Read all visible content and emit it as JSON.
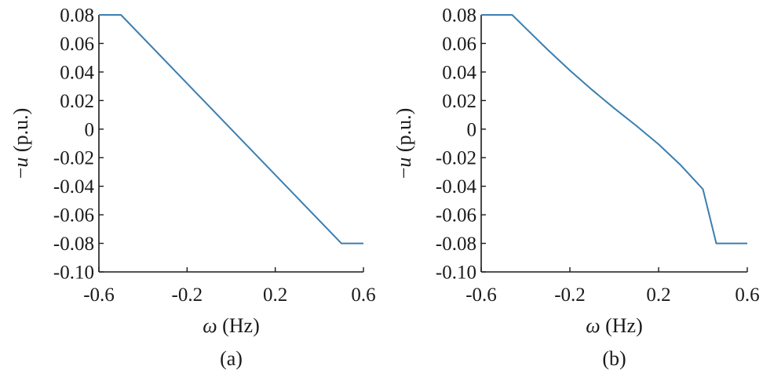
{
  "chart_data": [
    {
      "type": "line",
      "panel_label": "(a)",
      "xlabel_symbol": "ω",
      "xlabel_unit": " (Hz)",
      "ylabel_prefix": "−",
      "ylabel_symbol": "u",
      "ylabel_unit": " (p.u.)",
      "xlim": [
        -0.6,
        0.6
      ],
      "ylim": [
        -0.1,
        0.08
      ],
      "xticks": [
        -0.6,
        -0.2,
        0.2,
        0.6
      ],
      "xtick_labels": [
        "-0.6",
        "-0.2",
        "0.2",
        "0.6"
      ],
      "yticks": [
        0.08,
        0.06,
        0.04,
        0.02,
        0,
        -0.02,
        -0.04,
        -0.06,
        -0.08,
        -0.1
      ],
      "ytick_labels": [
        "0.08",
        "0.06",
        "0.04",
        "0.02",
        "0",
        "-0.02",
        "-0.04",
        "-0.06",
        "-0.08",
        "-0.10"
      ],
      "grid": false,
      "series": [
        {
          "color": "#3a7fb0",
          "x": [
            -0.6,
            -0.5,
            0.5,
            0.6
          ],
          "y": [
            0.08,
            0.08,
            -0.08,
            -0.08
          ]
        }
      ]
    },
    {
      "type": "line",
      "panel_label": "(b)",
      "xlabel_symbol": "ω",
      "xlabel_unit": " (Hz)",
      "ylabel_prefix": "−",
      "ylabel_symbol": "u",
      "ylabel_unit": " (p.u.)",
      "xlim": [
        -0.6,
        0.6
      ],
      "ylim": [
        -0.1,
        0.08
      ],
      "xticks": [
        -0.6,
        -0.2,
        0.2,
        0.6
      ],
      "xtick_labels": [
        "-0.6",
        "-0.2",
        "0.2",
        "0.6"
      ],
      "yticks": [
        0.08,
        0.06,
        0.04,
        0.02,
        0,
        -0.02,
        -0.04,
        -0.06,
        -0.08,
        -0.1
      ],
      "ytick_labels": [
        "0.08",
        "0.06",
        "0.04",
        "0.02",
        "0",
        "-0.02",
        "-0.04",
        "-0.06",
        "-0.08",
        "-0.10"
      ],
      "grid": false,
      "series": [
        {
          "color": "#3a7fb0",
          "x": [
            -0.6,
            -0.46,
            -0.4,
            -0.3,
            -0.2,
            -0.1,
            0,
            0.1,
            0.2,
            0.3,
            0.4,
            0.46,
            0.6
          ],
          "y": [
            0.08,
            0.08,
            0.0708,
            0.0556,
            0.0411,
            0.0275,
            0.0146,
            0.0023,
            -0.0106,
            -0.0253,
            -0.0421,
            -0.08,
            -0.08
          ]
        }
      ]
    }
  ]
}
